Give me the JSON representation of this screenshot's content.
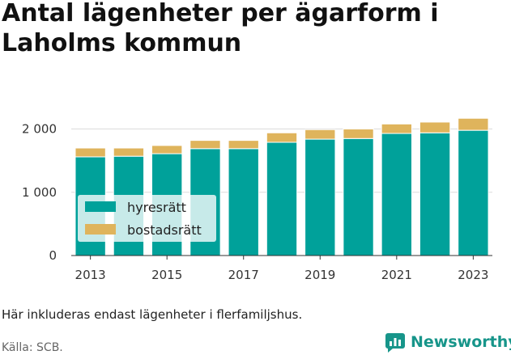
{
  "title": "Antal lägenheter per ägarform i Laholms kommun",
  "note": "Här inkluderas endast lägenheter i flerfamiljshus.",
  "source": "Källa: SCB.",
  "brand": {
    "name": "Newsworthy",
    "icon": "newsworthy-logo-icon",
    "color": "#17958a"
  },
  "chart_data": {
    "type": "bar",
    "stacked": true,
    "title": "",
    "xlabel": "",
    "ylabel": "",
    "categories": [
      "2013",
      "2014",
      "2015",
      "2016",
      "2017",
      "2018",
      "2019",
      "2020",
      "2021",
      "2022",
      "2023"
    ],
    "x_tick_labels": [
      "2013",
      "2015",
      "2017",
      "2019",
      "2021",
      "2023"
    ],
    "y_ticks": [
      0,
      1000,
      2000
    ],
    "y_tick_labels": [
      "0",
      "1 000",
      "2 000"
    ],
    "ylim": [
      0,
      2250
    ],
    "grid": true,
    "legend_position": "bottom-left",
    "series": [
      {
        "name": "hyresrätt",
        "color": "#00a19a",
        "values": [
          1560,
          1570,
          1610,
          1690,
          1690,
          1790,
          1840,
          1850,
          1930,
          1940,
          1980
        ]
      },
      {
        "name": "bostadsrätt",
        "color": "#dfb45c",
        "values": [
          140,
          130,
          130,
          130,
          130,
          150,
          150,
          150,
          150,
          170,
          190
        ]
      }
    ]
  }
}
